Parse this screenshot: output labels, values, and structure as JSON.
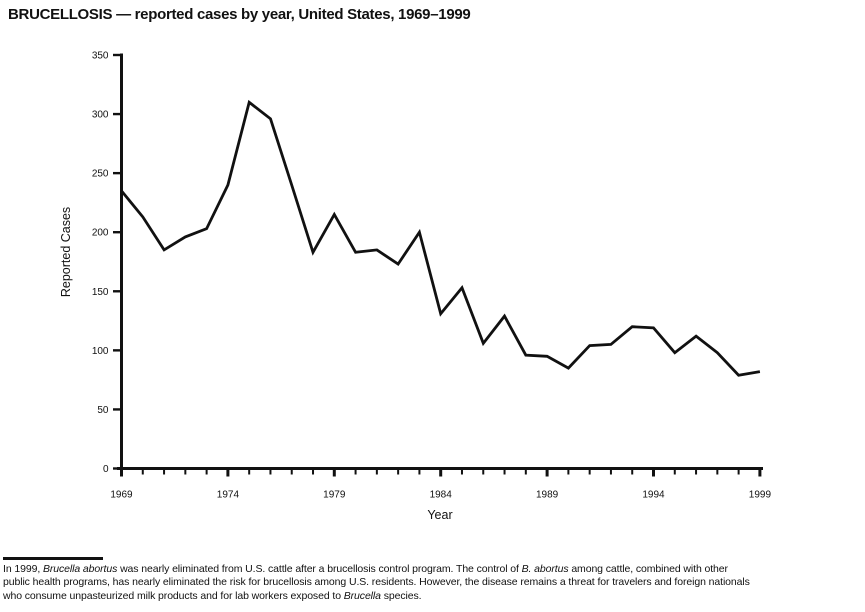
{
  "chart_data": {
    "type": "line",
    "title": "BRUCELLOSIS — reported cases by year, United States, 1969–1999",
    "xlabel": "Year",
    "ylabel": "Reported Cases",
    "x": [
      1969,
      1970,
      1971,
      1972,
      1973,
      1974,
      1975,
      1976,
      1977,
      1978,
      1979,
      1980,
      1981,
      1982,
      1983,
      1984,
      1985,
      1986,
      1987,
      1988,
      1989,
      1990,
      1991,
      1992,
      1993,
      1994,
      1995,
      1996,
      1997,
      1998,
      1999
    ],
    "values": [
      235,
      213,
      185,
      196,
      203,
      240,
      310,
      296,
      240,
      183,
      215,
      183,
      185,
      173,
      200,
      131,
      153,
      106,
      129,
      96,
      95,
      85,
      104,
      105,
      120,
      119,
      98,
      112,
      98,
      79,
      82
    ],
    "xlim": [
      1969,
      1999
    ],
    "ylim": [
      0,
      350
    ],
    "y_ticks": [
      0,
      50,
      100,
      150,
      200,
      250,
      300,
      350
    ],
    "x_major_ticks": [
      1969,
      1974,
      1979,
      1984,
      1989,
      1994,
      1999
    ],
    "x_minor_tick_interval": 1,
    "grid": false,
    "legend": "none",
    "line_color": "#111111"
  },
  "footnote": {
    "line1_pre": "In 1999, ",
    "line1_it1": "Brucella abortus",
    "line1_mid": " was nearly eliminated from U.S. cattle after a brucellosis control program. The control of ",
    "line1_it2": "B. abortus",
    "line1_post": " among cattle, combined with other",
    "line2": "public health programs, has nearly eliminated the risk for brucellosis among U.S. residents. However, the disease remains a threat for travelers and foreign nationals",
    "line3_pre": "who consume unpasteurized milk products and for lab workers exposed to ",
    "line3_it": "Brucella",
    "line3_post": " species."
  }
}
